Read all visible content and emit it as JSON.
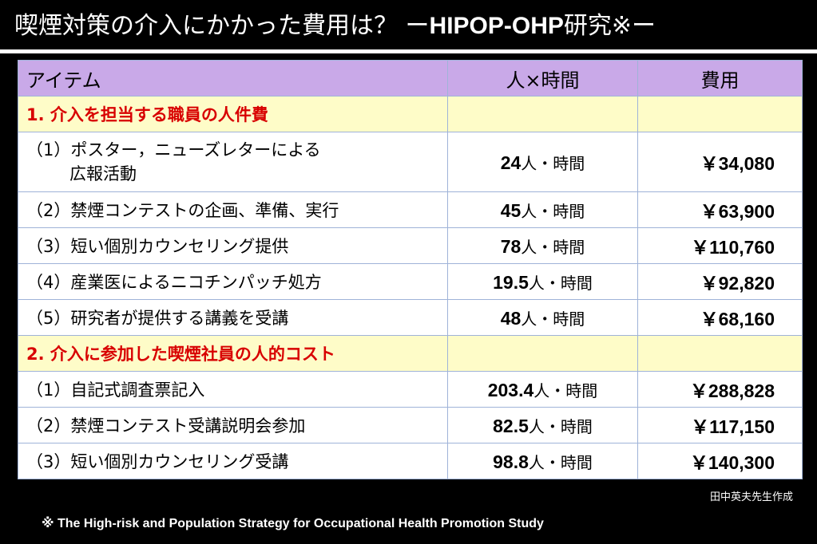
{
  "slide": {
    "title_jp": "喫煙対策の介入にかかった費用は？ ー",
    "title_latin": "HIPOP-OHP",
    "title_suffix": "研究※ー",
    "author_note": "田中英夫先生作成",
    "footnote": "※ The High-risk and Population Strategy for Occupational Health Promotion Study"
  },
  "table": {
    "headers": [
      "アイテム",
      "人×時間",
      "費用"
    ],
    "sections": [
      {
        "label": "1. 介入を担当する職員の人件費",
        "rows": [
          {
            "item_line1": "（1）ポスター，ニューズレターによる",
            "item_line2": "広報活動",
            "hours": "24",
            "unit": "人・時間",
            "cost": "￥34,080"
          },
          {
            "item_line1": "（2）禁煙コンテストの企画、準備、実行",
            "hours": "45",
            "unit": "人・時間",
            "cost": "￥63,900"
          },
          {
            "item_line1": "（3）短い個別カウンセリング提供",
            "hours": "78",
            "unit": "人・時間",
            "cost": "￥110,760"
          },
          {
            "item_line1": "（4）産業医によるニコチンパッチ処方",
            "hours": "19.5",
            "unit": "人・時間",
            "cost": "￥92,820"
          },
          {
            "item_line1": "（5）研究者が提供する講義を受講",
            "hours": "48",
            "unit": "人・時間",
            "cost": "￥68,160"
          }
        ]
      },
      {
        "label": "2. 介入に参加した喫煙社員の人的コスト",
        "rows": [
          {
            "item_line1": "（1）自記式調査票記入",
            "hours": "203.4",
            "unit": "人・時間",
            "cost": "￥288,828"
          },
          {
            "item_line1": "（2）禁煙コンテスト受講説明会参加",
            "hours": "82.5",
            "unit": "人・時間",
            "cost": "￥117,150"
          },
          {
            "item_line1": "（3）短い個別カウンセリング受講",
            "hours": "98.8",
            "unit": "人・時間",
            "cost": "￥140,300"
          }
        ]
      }
    ]
  },
  "colors": {
    "background": "#000000",
    "header_row": "#c9a9e8",
    "section_row": "#fefcc8",
    "section_text": "#d80000",
    "item_row": "#ffffff"
  }
}
